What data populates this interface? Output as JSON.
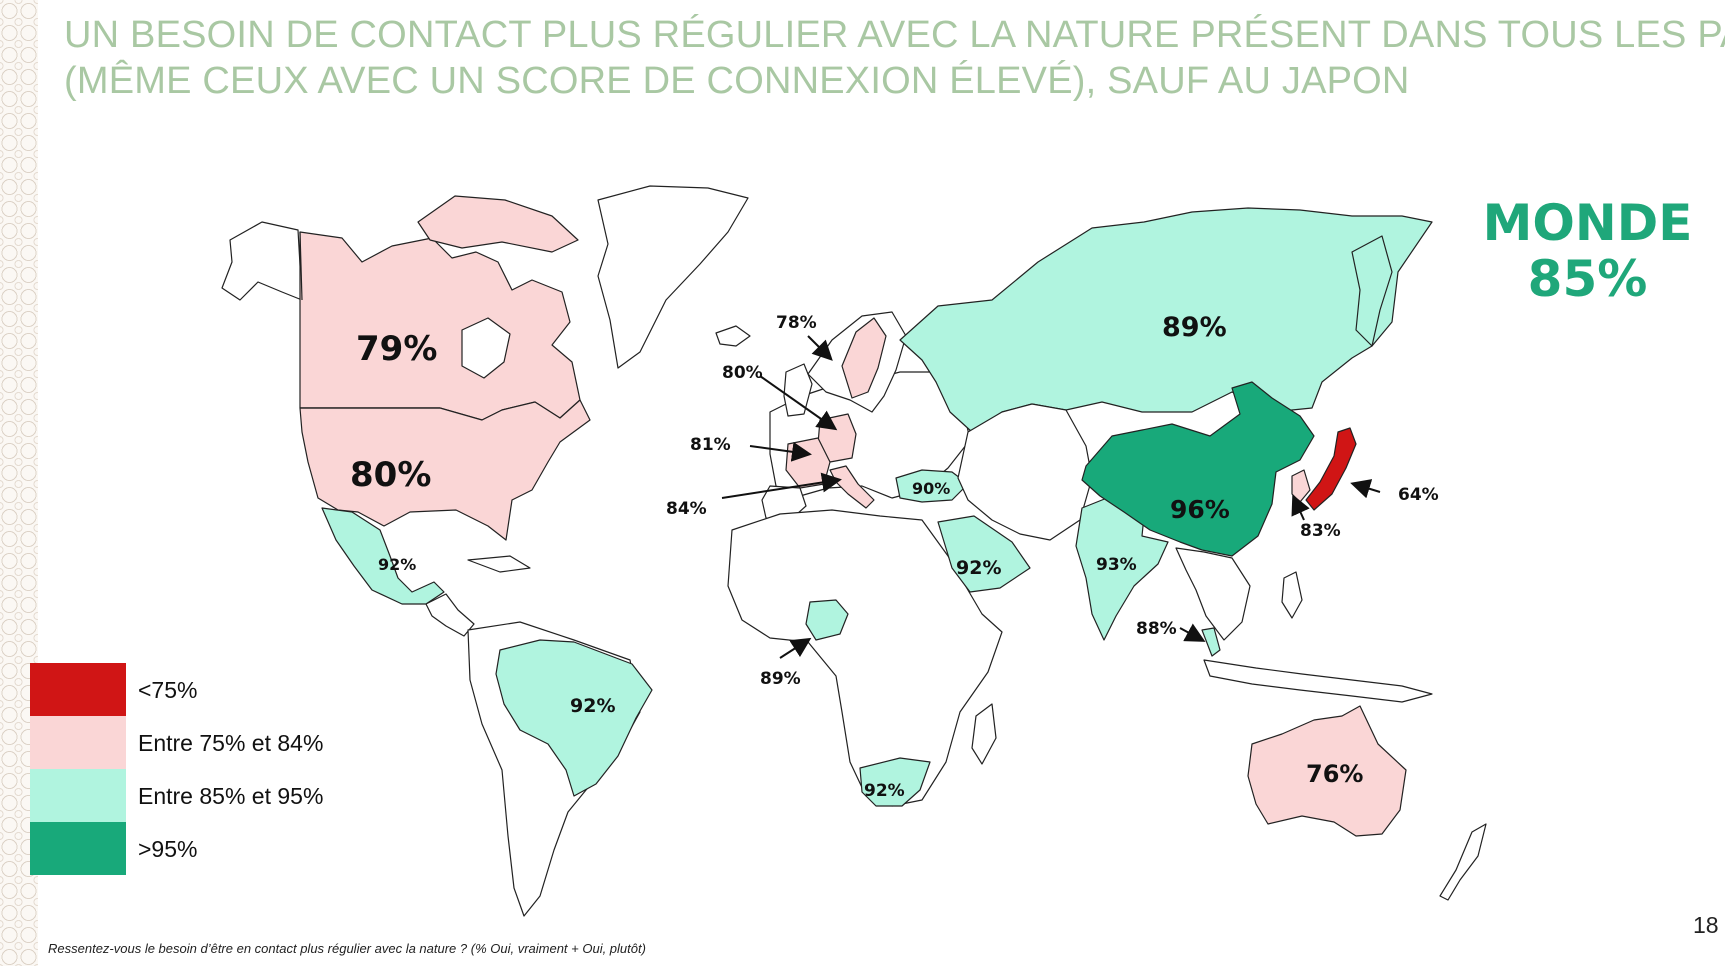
{
  "slide": {
    "title_line1": "UN BESOIN DE CONTACT PLUS RÉGULIER AVEC LA NATURE PRÉSENT DANS TOUS LES PAYS",
    "title_line2": "(MÊME CEUX AVEC UN SCORE DE CONNEXION ÉLEVÉ), SAUF AU JAPON",
    "world_label": "MONDE",
    "world_value": "85%",
    "footnote": "Ressentez-vous le besoin d’être en contact plus régulier avec la nature ? (% Oui, vraiment + Oui, plutôt)",
    "page_number": "18"
  },
  "legend": [
    {
      "label": "<75%",
      "color": "#d01515"
    },
    {
      "label": "Entre 75% et 84%",
      "color": "#fad6d6"
    },
    {
      "label": "Entre 85% et 95%",
      "color": "#b0f4df"
    },
    {
      "label": ">95%",
      "color": "#18a97a"
    }
  ],
  "map_labels": {
    "canada": "79%",
    "usa": "80%",
    "mexico": "92%",
    "brazil": "92%",
    "sweden": "78%",
    "germany": "80%",
    "france": "81%",
    "italy": "84%",
    "turkey": "90%",
    "nigeria": "89%",
    "south_africa": "92%",
    "saudi_arabia": "92%",
    "russia": "89%",
    "china": "96%",
    "india": "93%",
    "indonesia": "88%",
    "south_korea": "83%",
    "japan": "64%",
    "australia": "76%"
  }
}
